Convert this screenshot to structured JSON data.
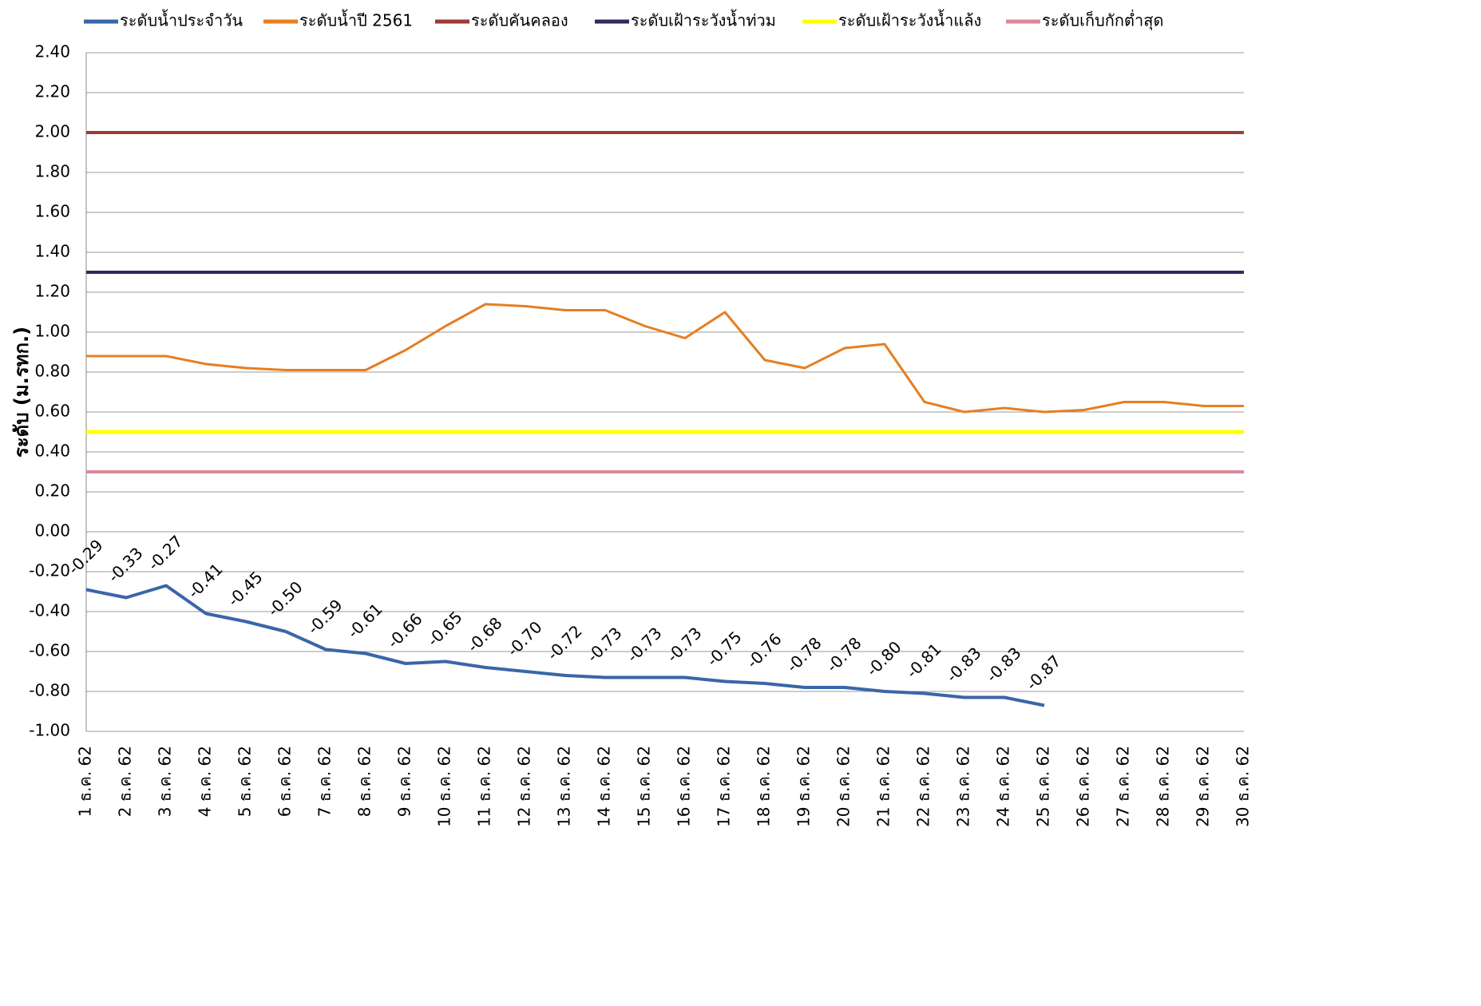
{
  "chart_data": {
    "type": "line",
    "y_label": "ระดับ (ม.รทก.)",
    "categories": [
      "1 ธ.ค. 62",
      "2 ธ.ค. 62",
      "3 ธ.ค. 62",
      "4 ธ.ค. 62",
      "5 ธ.ค. 62",
      "6 ธ.ค. 62",
      "7 ธ.ค. 62",
      "8 ธ.ค. 62",
      "9 ธ.ค. 62",
      "10 ธ.ค. 62",
      "11 ธ.ค. 62",
      "12 ธ.ค. 62",
      "13 ธ.ค. 62",
      "14 ธ.ค. 62",
      "15 ธ.ค. 62",
      "16 ธ.ค. 62",
      "17 ธ.ค. 62",
      "18 ธ.ค. 62",
      "19 ธ.ค. 62",
      "20 ธ.ค. 62",
      "21 ธ.ค. 62",
      "22 ธ.ค. 62",
      "23 ธ.ค. 62",
      "24 ธ.ค. 62",
      "25 ธ.ค. 62",
      "26 ธ.ค. 62",
      "27 ธ.ค. 62",
      "28 ธ.ค. 62",
      "29 ธ.ค. 62",
      "30 ธ.ค. 62"
    ],
    "series": [
      {
        "name": "ระดับน้ำประจำวัน",
        "color": "#3a66a8",
        "width": 4,
        "values": [
          -0.29,
          -0.33,
          -0.27,
          -0.41,
          -0.45,
          -0.5,
          -0.59,
          -0.61,
          -0.66,
          -0.65,
          -0.68,
          -0.7,
          -0.72,
          -0.73,
          -0.73,
          -0.73,
          -0.75,
          -0.76,
          -0.78,
          -0.78,
          -0.8,
          -0.81,
          -0.83,
          -0.83,
          -0.87,
          null,
          null,
          null,
          null,
          null
        ],
        "value_labels": [
          "-0.29",
          "-0.33",
          "-0.27",
          "-0.41",
          "-0.45",
          "-0.50",
          "-0.59",
          "-0.61",
          "-0.66",
          "-0.65",
          "-0.68",
          "-0.70",
          "-0.72",
          "-0.73",
          "-0.73",
          "-0.73",
          "-0.75",
          "-0.76",
          "-0.78",
          "-0.78",
          "-0.80",
          "-0.81",
          "-0.83",
          "-0.83",
          "-0.87",
          null,
          null,
          null,
          null,
          null
        ]
      },
      {
        "name": "ระดับน้ำปี 2561",
        "color": "#e67e22",
        "width": 3,
        "values": [
          0.88,
          0.88,
          0.88,
          0.84,
          0.82,
          0.81,
          0.81,
          0.81,
          0.91,
          1.03,
          1.14,
          1.13,
          1.11,
          1.11,
          1.03,
          0.97,
          1.1,
          0.86,
          0.82,
          0.92,
          0.94,
          0.65,
          0.6,
          0.62,
          0.6,
          0.61,
          0.65,
          0.65,
          0.63,
          0.63
        ]
      },
      {
        "name": "ระดับคันคลอง",
        "color": "#9e3a38",
        "width": 4,
        "values": [
          2,
          2,
          2,
          2,
          2,
          2,
          2,
          2,
          2,
          2,
          2,
          2,
          2,
          2,
          2,
          2,
          2,
          2,
          2,
          2,
          2,
          2,
          2,
          2,
          2,
          2,
          2,
          2,
          2,
          2
        ]
      },
      {
        "name": "ระดับเฝ้าระวังน้ำท่วม",
        "color": "#2e2b5f",
        "width": 4,
        "values": [
          1.3,
          1.3,
          1.3,
          1.3,
          1.3,
          1.3,
          1.3,
          1.3,
          1.3,
          1.3,
          1.3,
          1.3,
          1.3,
          1.3,
          1.3,
          1.3,
          1.3,
          1.3,
          1.3,
          1.3,
          1.3,
          1.3,
          1.3,
          1.3,
          1.3,
          1.3,
          1.3,
          1.3,
          1.3,
          1.3
        ]
      },
      {
        "name": "ระดับเฝ้าระวังน้ำแล้ง",
        "color": "#ffff00",
        "width": 5,
        "values": [
          0.5,
          0.5,
          0.5,
          0.5,
          0.5,
          0.5,
          0.5,
          0.5,
          0.5,
          0.5,
          0.5,
          0.5,
          0.5,
          0.5,
          0.5,
          0.5,
          0.5,
          0.5,
          0.5,
          0.5,
          0.5,
          0.5,
          0.5,
          0.5,
          0.5,
          0.5,
          0.5,
          0.5,
          0.5,
          0.5
        ]
      },
      {
        "name": "ระดับเก็บกักต่ำสุด",
        "color": "#d9899a",
        "width": 4,
        "values": [
          0.3,
          0.3,
          0.3,
          0.3,
          0.3,
          0.3,
          0.3,
          0.3,
          0.3,
          0.3,
          0.3,
          0.3,
          0.3,
          0.3,
          0.3,
          0.3,
          0.3,
          0.3,
          0.3,
          0.3,
          0.3,
          0.3,
          0.3,
          0.3,
          0.3,
          0.3,
          0.3,
          0.3,
          0.3,
          0.3
        ]
      }
    ],
    "ylim": [
      -1,
      2.4
    ],
    "yticks": [
      {
        "value": -1,
        "label": "-1.00"
      },
      {
        "value": -0.8,
        "label": "-0.80"
      },
      {
        "value": -0.6,
        "label": "-0.60"
      },
      {
        "value": -0.4,
        "label": "-0.40"
      },
      {
        "value": -0.2,
        "label": "-0.20"
      },
      {
        "value": 0,
        "label": "0.00"
      },
      {
        "value": 0.2,
        "label": "0.20"
      },
      {
        "value": 0.4,
        "label": "0.40"
      },
      {
        "value": 0.6,
        "label": "0.60"
      },
      {
        "value": 0.8,
        "label": "0.80"
      },
      {
        "value": 1,
        "label": "1.00"
      },
      {
        "value": 1.2,
        "label": "1.20"
      },
      {
        "value": 1.4,
        "label": "1.40"
      },
      {
        "value": 1.6,
        "label": "1.60"
      },
      {
        "value": 1.8,
        "label": "1.80"
      },
      {
        "value": 2,
        "label": "2.00"
      },
      {
        "value": 2.2,
        "label": "2.20"
      },
      {
        "value": 2.4,
        "label": "2.40"
      }
    ],
    "grid": true,
    "legend": "top"
  }
}
